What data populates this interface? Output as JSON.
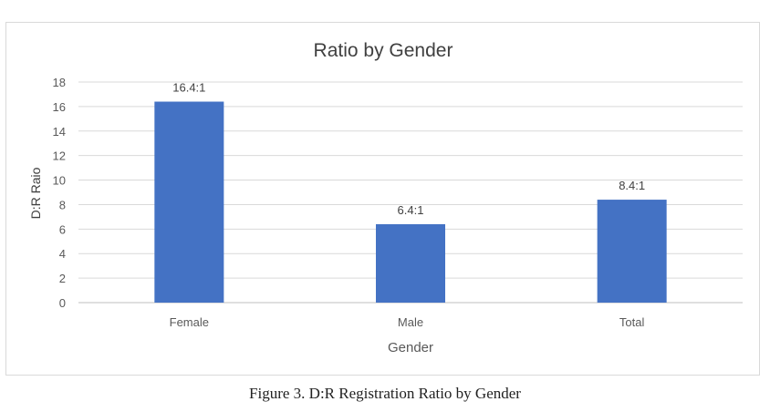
{
  "chart_data": {
    "type": "bar",
    "title": "Ratio by Gender",
    "xlabel": "Gender",
    "ylabel": "D:R Raio",
    "categories": [
      "Female",
      "Male",
      "Total"
    ],
    "values": [
      16.4,
      6.4,
      8.4
    ],
    "data_labels": [
      "16.4:1",
      "6.4:1",
      "8.4:1"
    ],
    "ylim": [
      0,
      18
    ],
    "yticks": [
      0,
      2,
      4,
      6,
      8,
      10,
      12,
      14,
      16,
      18
    ],
    "grid": true,
    "legend": "none",
    "bar_color": "#4472c4"
  },
  "caption": "Figure 3. D:R Registration Ratio by Gender"
}
